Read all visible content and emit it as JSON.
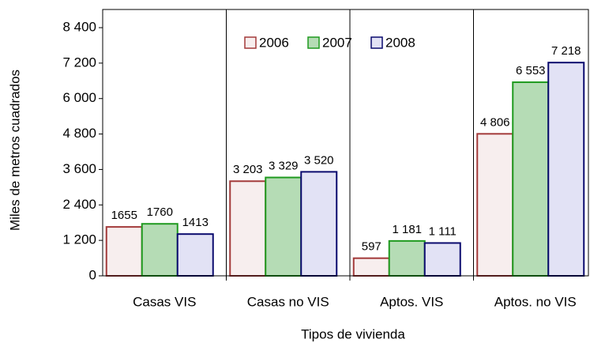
{
  "chart_data": {
    "type": "bar",
    "x_label": "Tipos de vivienda",
    "y_label": "Miles de metros cuadrados",
    "categories": [
      "Casas VIS",
      "Casas no VIS",
      "Aptos. VIS",
      "Aptos. no VIS"
    ],
    "series": [
      {
        "name": "2006",
        "color": "#f7eeee",
        "border": "#a33a3a",
        "values": [
          1655,
          3203,
          597,
          4806
        ],
        "value_labels": [
          "1655",
          "3 203",
          "597",
          "4 806"
        ]
      },
      {
        "name": "2007",
        "color": "#b5dcb5",
        "border": "#1f9a1f",
        "values": [
          1760,
          3329,
          1181,
          6553
        ],
        "value_labels": [
          "1760",
          "3 329",
          "1 181",
          "6 553"
        ]
      },
      {
        "name": "2008",
        "color": "#e2e2f5",
        "border": "#0a0a6e",
        "values": [
          1413,
          3520,
          1111,
          7218
        ],
        "value_labels": [
          "1413",
          "3 520",
          "1 111",
          "7 218"
        ]
      }
    ],
    "ylim": [
      0,
      8400
    ],
    "yticks": [
      0,
      {
        "value": 1200,
        "label": "1 200"
      },
      {
        "value": 2400,
        "label": "2 400"
      },
      {
        "value": 3600,
        "label": "3 600"
      },
      {
        "value": 4800,
        "label": "4 800"
      },
      {
        "value": 6000,
        "label": "6 000"
      },
      {
        "value": 7200,
        "label": "7 200"
      },
      {
        "value": 8400,
        "label": "8 400"
      }
    ],
    "legend": "top"
  }
}
